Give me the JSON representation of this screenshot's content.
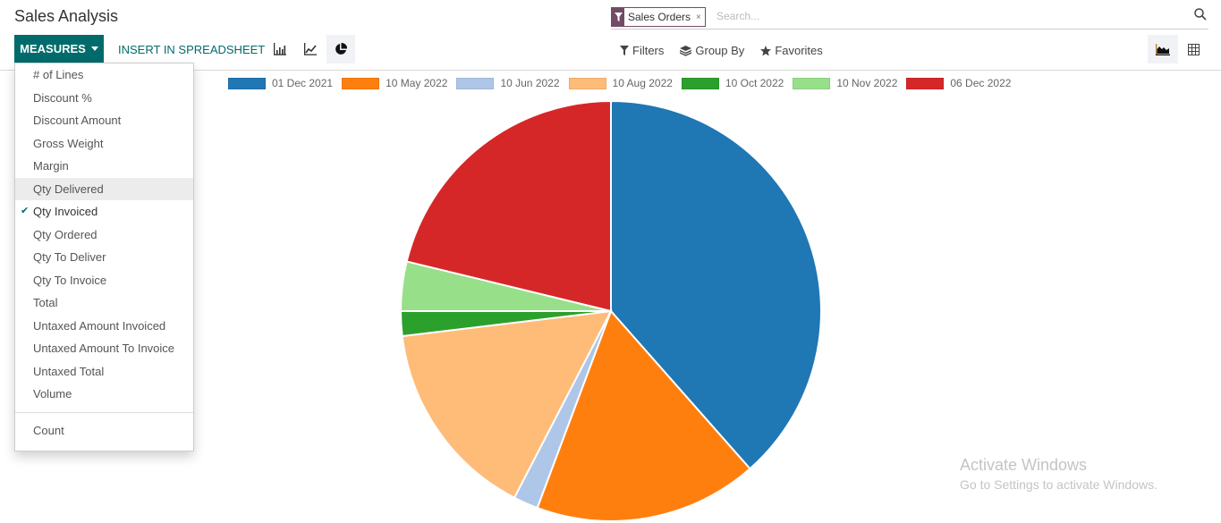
{
  "page": {
    "title": "Sales Analysis"
  },
  "toolbar": {
    "measures_label": "MEASURES",
    "insert_label": "INSERT IN SPREADSHEET",
    "chart_types": [
      {
        "name": "bar-chart-icon",
        "active": false
      },
      {
        "name": "line-chart-icon",
        "active": false
      },
      {
        "name": "pie-chart-icon",
        "active": true
      }
    ]
  },
  "search": {
    "facet_label": "Sales Orders",
    "facet_remove": "×",
    "placeholder": "Search..."
  },
  "filters": {
    "filters_label": "Filters",
    "groupby_label": "Group By",
    "favorites_label": "Favorites"
  },
  "views": [
    {
      "name": "graph-view-icon",
      "active": true
    },
    {
      "name": "pivot-view-icon",
      "active": false
    }
  ],
  "measures_menu": {
    "items": [
      {
        "label": "# of Lines",
        "checked": false
      },
      {
        "label": "Discount %",
        "checked": false
      },
      {
        "label": "Discount Amount",
        "checked": false
      },
      {
        "label": "Gross Weight",
        "checked": false
      },
      {
        "label": "Margin",
        "checked": false
      },
      {
        "label": "Qty Delivered",
        "checked": false,
        "hover": true
      },
      {
        "label": "Qty Invoiced",
        "checked": true
      },
      {
        "label": "Qty Ordered",
        "checked": false
      },
      {
        "label": "Qty To Deliver",
        "checked": false
      },
      {
        "label": "Qty To Invoice",
        "checked": false
      },
      {
        "label": "Total",
        "checked": false
      },
      {
        "label": "Untaxed Amount Invoiced",
        "checked": false
      },
      {
        "label": "Untaxed Amount To Invoice",
        "checked": false
      },
      {
        "label": "Untaxed Total",
        "checked": false
      },
      {
        "label": "Volume",
        "checked": false
      }
    ],
    "count_label": "Count",
    "check_mark": "✔"
  },
  "chart_data": {
    "type": "pie",
    "title": "",
    "measure": "Qty Invoiced",
    "legend_position": "top",
    "categories": [
      "01 Dec 2021",
      "10 May 2022",
      "10 Jun 2022",
      "10 Aug 2022",
      "10 Oct 2022",
      "10 Nov 2022",
      "06 Dec 2022"
    ],
    "values": [
      38.5,
      17.2,
      1.9,
      15.5,
      1.9,
      3.8,
      21.2
    ],
    "value_unit": "percent of total (estimated from slice angles)",
    "colors": [
      "#1f77b4",
      "#ff7f0e",
      "#aec7e8",
      "#ffbb78",
      "#2ca02c",
      "#98df8a",
      "#d62728"
    ]
  },
  "watermark": {
    "line1": "Activate Windows",
    "line2": "Go to Settings to activate Windows."
  }
}
